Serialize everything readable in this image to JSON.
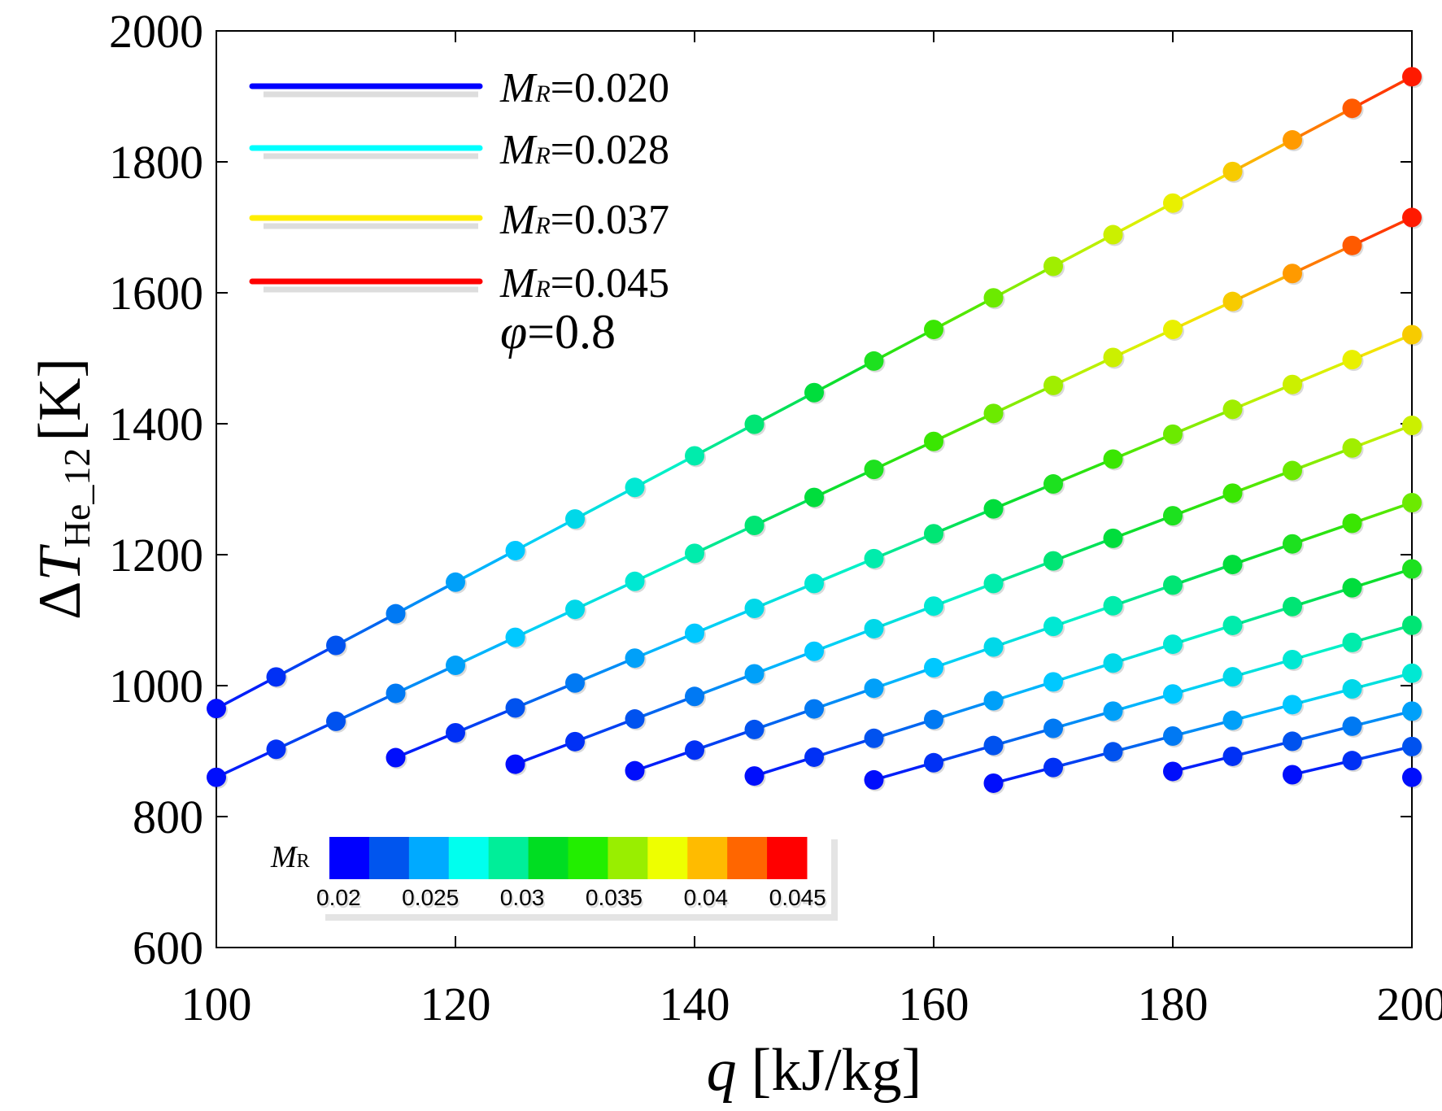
{
  "chart_data": {
    "type": "scatter",
    "xlabel_var": "q",
    "xlabel_unit": "[kJ/kg]",
    "ylabel_delta": "Δ",
    "ylabel_var": "T",
    "ylabel_sub": "He_12",
    "ylabel_unit": "[K]",
    "xlim": [
      100,
      200
    ],
    "ylim": [
      600,
      2000
    ],
    "x_ticks": [
      "100",
      "120",
      "140",
      "160",
      "180",
      "200"
    ],
    "y_ticks": [
      "600",
      "800",
      "1000",
      "1200",
      "1400",
      "1600",
      "1800",
      "2000"
    ],
    "legend_position": "top-left",
    "legend": [
      {
        "var": "M",
        "sub": "R",
        "value": "=0.020",
        "color": "#0000ff"
      },
      {
        "var": "M",
        "sub": "R",
        "value": "=0.028",
        "color": "#00ffff"
      },
      {
        "var": "M",
        "sub": "R",
        "value": "=0.037",
        "color": "#ffee00"
      },
      {
        "var": "M",
        "sub": "R",
        "value": "=0.045",
        "color": "#ff0000"
      }
    ],
    "annotation": {
      "var": "φ",
      "value": "=0.8"
    },
    "colorbar": {
      "label_var": "M",
      "label_sub": "R",
      "ticks": [
        "0.02",
        "0.025",
        "0.03",
        "0.035",
        "0.04",
        "0.045"
      ],
      "tick_values": [
        0.02,
        0.025,
        0.03,
        0.035,
        0.04,
        0.045
      ],
      "range": [
        0.0195,
        0.0455
      ],
      "segments": [
        "#0000ff",
        "#0055ee",
        "#00aaff",
        "#00ffee",
        "#00ee99",
        "#00dd22",
        "#22ee00",
        "#99ee00",
        "#eeff00",
        "#ffbb00",
        "#ff6600",
        "#ff0000"
      ]
    },
    "series": [
      {
        "name": "line1",
        "x_start": 100,
        "y_start": 965,
        "slope": 9.65
      },
      {
        "name": "line2",
        "x_start": 100,
        "y_start": 860,
        "slope": 8.55
      },
      {
        "name": "line3",
        "x_start": 115,
        "y_start": 890,
        "slope": 7.6
      },
      {
        "name": "line4",
        "x_start": 125,
        "y_start": 880,
        "slope": 6.9
      },
      {
        "name": "line5",
        "x_start": 135,
        "y_start": 870,
        "slope": 6.3
      },
      {
        "name": "line6",
        "x_start": 145,
        "y_start": 862,
        "slope": 5.75
      },
      {
        "name": "line7",
        "x_start": 155,
        "y_start": 856,
        "slope": 5.25
      },
      {
        "name": "line8",
        "x_start": 165,
        "y_start": 851,
        "slope": 4.8
      },
      {
        "name": "line9",
        "x_start": 180,
        "y_start": 869,
        "slope": 4.6
      },
      {
        "name": "line10",
        "x_start": 190,
        "y_start": 864,
        "slope": 4.3
      },
      {
        "name": "line11",
        "x_start": 200,
        "y_start": 860,
        "slope": 4.0
      }
    ]
  }
}
